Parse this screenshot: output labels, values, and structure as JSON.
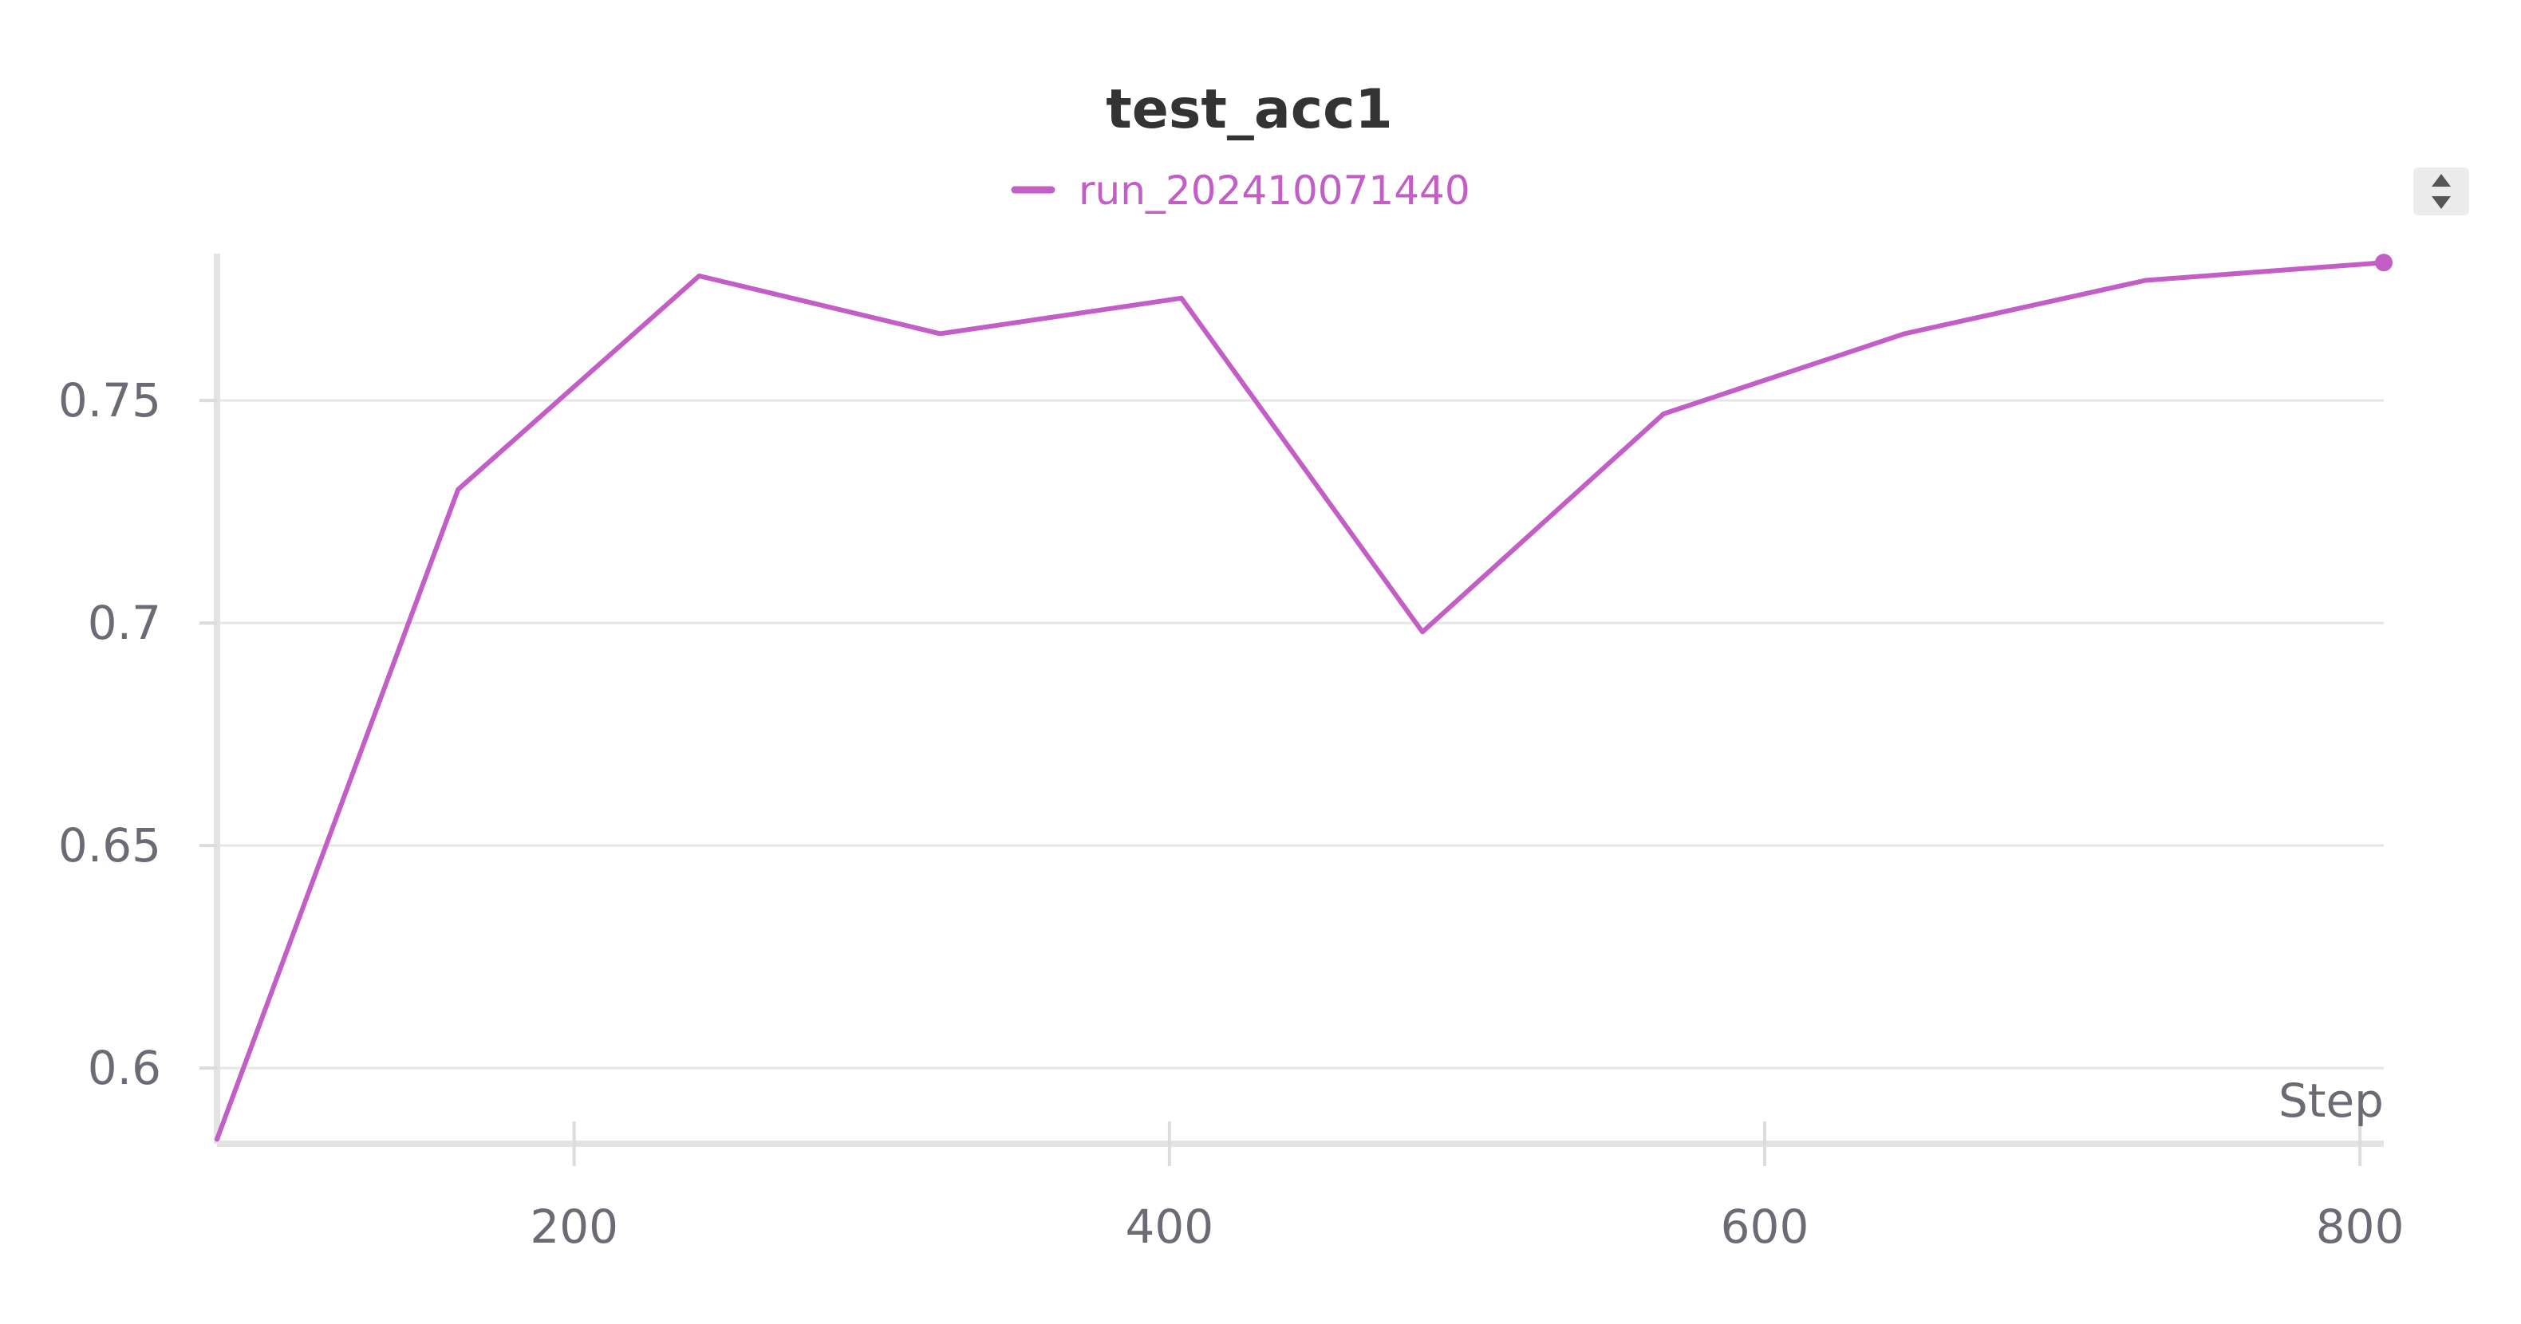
{
  "chart_data": {
    "type": "line",
    "title": "test_acc1",
    "xlabel": "Step",
    "ylabel": "",
    "xlim": [
      80,
      808
    ],
    "ylim": [
      0.583,
      0.783
    ],
    "xticks": [
      200,
      400,
      600,
      800
    ],
    "yticks": [
      0.6,
      0.65,
      0.7,
      0.75
    ],
    "ytick_labels": [
      "0.6",
      "0.65",
      "0.7",
      "0.75"
    ],
    "grid": true,
    "legend": "top-center",
    "series": [
      {
        "name": "run_202410071440",
        "color": "#c25ec6",
        "x": [
          80,
          161,
          242,
          323,
          404,
          485,
          566,
          647,
          728,
          808
        ],
        "y": [
          0.584,
          0.73,
          0.778,
          0.765,
          0.773,
          0.698,
          0.747,
          0.765,
          0.777,
          0.781
        ]
      }
    ]
  },
  "controls": {
    "legend_scroll_icon": "up-down-arrows-icon"
  }
}
